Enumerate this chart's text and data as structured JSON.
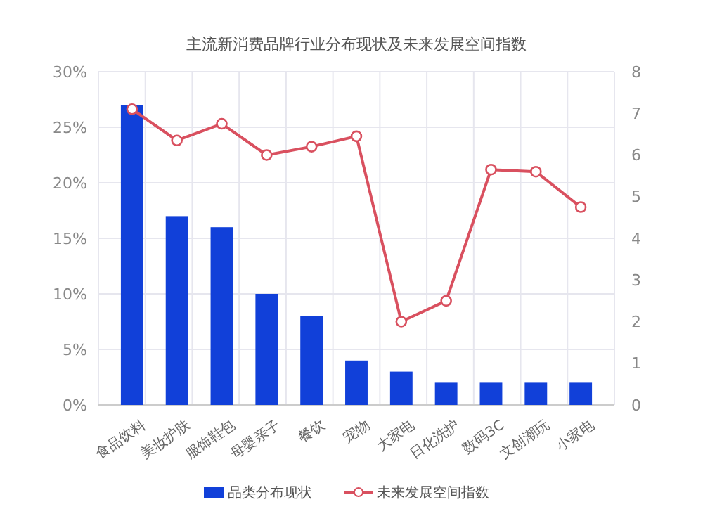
{
  "chart_data": {
    "type": "bar",
    "title": "主流新消费品牌行业分布现状及未来发展空间指数",
    "categories": [
      "食品饮料",
      "美妆护肤",
      "服饰鞋包",
      "母婴亲子",
      "餐饮",
      "宠物",
      "大家电",
      "日化洗护",
      "数码3C",
      "文创潮玩",
      "小家电"
    ],
    "series": [
      {
        "name": "品类分布现状",
        "color": "#1140d9",
        "values": [
          27,
          17,
          16,
          10,
          8,
          4,
          3,
          2,
          2,
          2,
          2
        ]
      },
      {
        "name": "未来发展空间指数",
        "type": "line",
        "axis": "y2",
        "color": "#d9505f",
        "marker": "circle",
        "values": [
          7.1,
          6.35,
          6.75,
          6.0,
          6.2,
          6.45,
          2.0,
          2.5,
          5.65,
          5.6,
          4.75
        ]
      }
    ],
    "ylim": [
      0,
      30
    ],
    "yticks": [
      {
        "value": 0,
        "label": "0%"
      },
      {
        "value": 5,
        "label": "5%"
      },
      {
        "value": 10,
        "label": "10%"
      },
      {
        "value": 15,
        "label": "15%"
      },
      {
        "value": 20,
        "label": "20%"
      },
      {
        "value": 25,
        "label": "25%"
      },
      {
        "value": 30,
        "label": "30%"
      }
    ],
    "y2lim": [
      0,
      8
    ],
    "y2ticks": [
      0,
      1,
      2,
      3,
      4,
      5,
      6,
      7,
      8
    ],
    "grid": true,
    "legend": "bottom"
  }
}
